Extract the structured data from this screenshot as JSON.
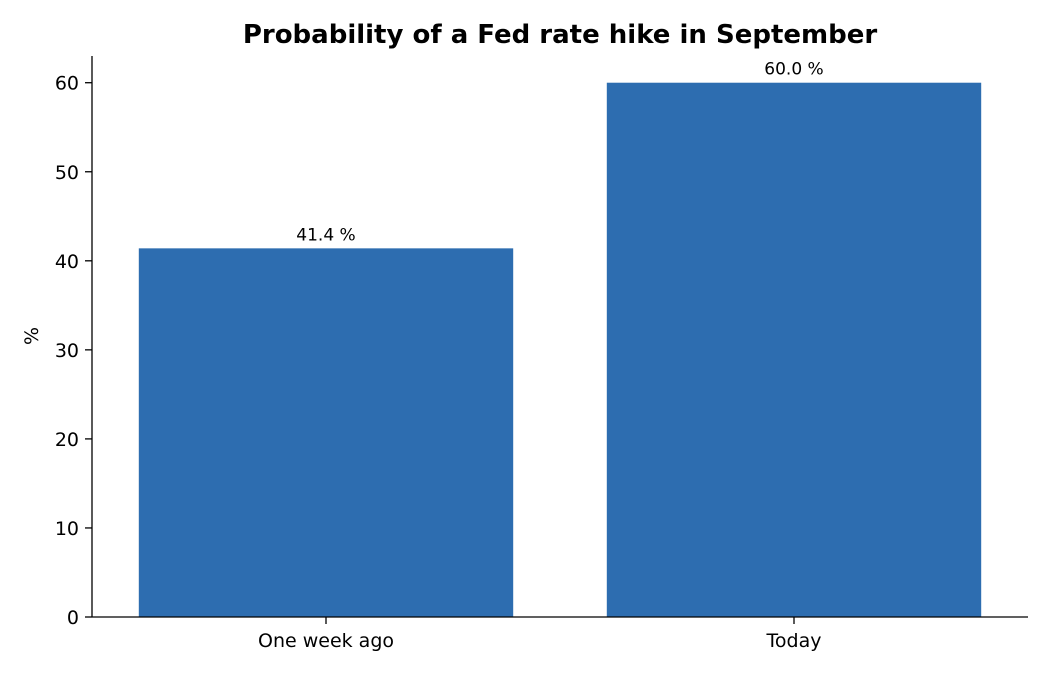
{
  "chart_data": {
    "type": "bar",
    "title": "Probability of a Fed rate hike in September",
    "xlabel": "",
    "ylabel": "%",
    "categories": [
      "One week ago",
      "Today"
    ],
    "values": [
      41.4,
      60.0
    ],
    "data_labels": [
      "41.4 %",
      "60.0 %"
    ],
    "ylim": [
      0,
      63
    ],
    "yticks": [
      0,
      10,
      20,
      30,
      40,
      50,
      60
    ],
    "grid": false,
    "legend": "none",
    "bar_color": "#2d6db0"
  }
}
